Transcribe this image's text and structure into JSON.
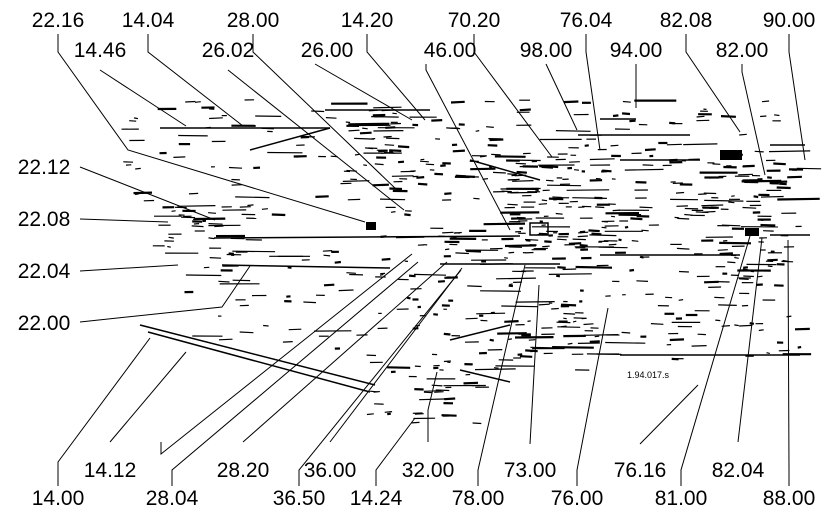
{
  "callouts": {
    "top_row1": [
      "22.16",
      "14.04",
      "28.00",
      "14.20",
      "70.20",
      "76.04",
      "82.08",
      "90.00"
    ],
    "top_row2": [
      "14.46",
      "26.02",
      "26.00",
      "46.00",
      "98.00",
      "94.00",
      "82.00"
    ],
    "left": [
      "22.12",
      "22.08",
      "22.04",
      "22.00"
    ],
    "bottom_row1": [
      "14.12",
      "28.20",
      "36.00",
      "32.00",
      "73.00",
      "76.16",
      "82.04"
    ],
    "bottom_row2": [
      "14.00",
      "28.04",
      "36.50",
      "14.24",
      "78.00",
      "76.00",
      "81.00",
      "88.00"
    ]
  },
  "figure_code": "1.94.017.s"
}
